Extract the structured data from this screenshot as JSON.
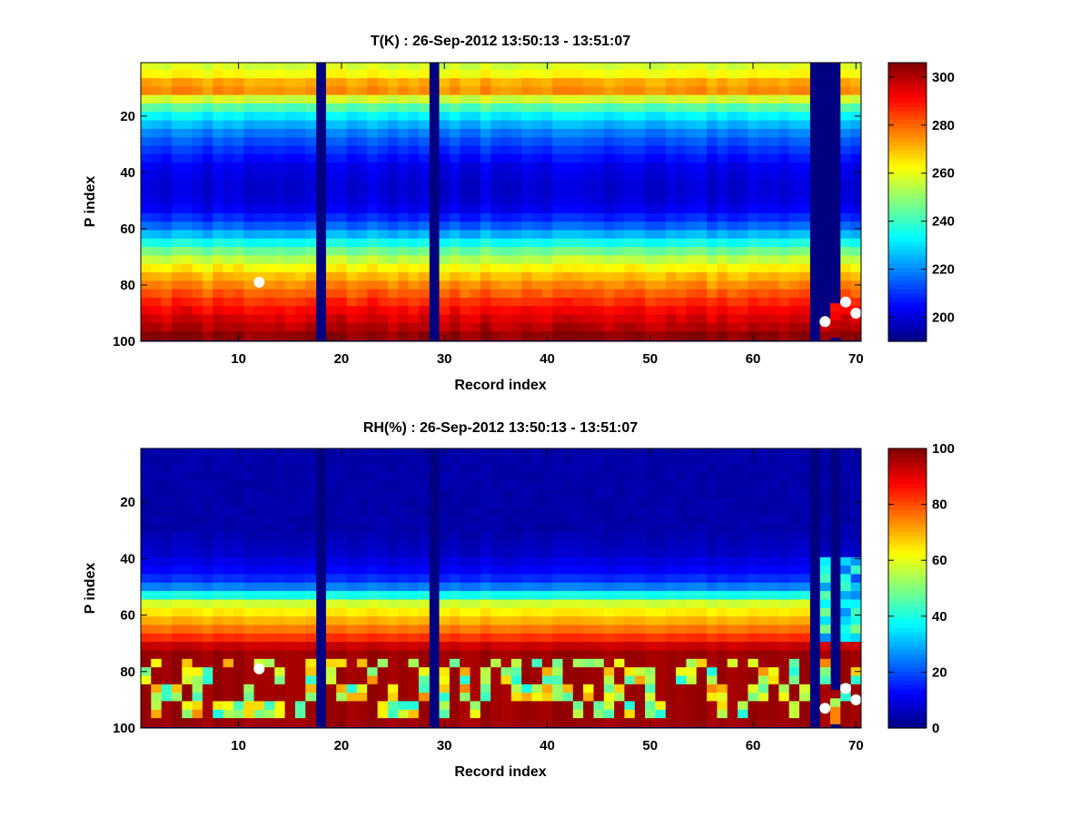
{
  "figure": {
    "background": "#ffffff",
    "colormap": "jet"
  },
  "chart_data": [
    {
      "type": "heatmap",
      "id": "temperature",
      "title": "T(K) : 26-Sep-2012 13:50:13 - 13:51:07",
      "xlabel": "Record index",
      "ylabel": "P index",
      "xlim": [
        0.5,
        70.5
      ],
      "ylim": [
        1,
        100
      ],
      "y_reversed": true,
      "xticks": [
        10,
        20,
        30,
        40,
        50,
        60,
        70
      ],
      "yticks": [
        20,
        40,
        60,
        80,
        100
      ],
      "colorbar": {
        "clim": [
          190,
          306
        ],
        "ticks": [
          200,
          220,
          240,
          260,
          280,
          300
        ]
      },
      "valid_rows": [
        1,
        98
      ],
      "missing_records": [
        18,
        29,
        66
      ],
      "partial_records": [
        {
          "record": 67,
          "valid_from_row": 94
        },
        {
          "record": 68,
          "valid_from_row": 87
        }
      ],
      "profile": [
        {
          "p": 1,
          "value": 256
        },
        {
          "p": 5,
          "value": 262
        },
        {
          "p": 8,
          "value": 272
        },
        {
          "p": 10,
          "value": 280
        },
        {
          "p": 12,
          "value": 270
        },
        {
          "p": 15,
          "value": 250
        },
        {
          "p": 20,
          "value": 232
        },
        {
          "p": 25,
          "value": 220
        },
        {
          "p": 30,
          "value": 212
        },
        {
          "p": 38,
          "value": 202
        },
        {
          "p": 45,
          "value": 199
        },
        {
          "p": 52,
          "value": 201
        },
        {
          "p": 58,
          "value": 212
        },
        {
          "p": 63,
          "value": 228
        },
        {
          "p": 68,
          "value": 246
        },
        {
          "p": 72,
          "value": 258
        },
        {
          "p": 76,
          "value": 268
        },
        {
          "p": 80,
          "value": 276
        },
        {
          "p": 84,
          "value": 283
        },
        {
          "p": 88,
          "value": 290
        },
        {
          "p": 92,
          "value": 296
        },
        {
          "p": 96,
          "value": 301
        },
        {
          "p": 98,
          "value": 304
        }
      ],
      "markers": [
        {
          "x": 12,
          "y": 79
        },
        {
          "x": 67,
          "y": 93
        },
        {
          "x": 69,
          "y": 86
        },
        {
          "x": 70,
          "y": 90
        }
      ]
    },
    {
      "type": "heatmap",
      "id": "humidity",
      "title": "RH(%) : 26-Sep-2012 13:50:13 - 13:51:07",
      "xlabel": "Record index",
      "ylabel": "P index",
      "xlim": [
        0.5,
        70.5
      ],
      "ylim": [
        1,
        100
      ],
      "y_reversed": true,
      "xticks": [
        10,
        20,
        30,
        40,
        50,
        60,
        70
      ],
      "yticks": [
        20,
        40,
        60,
        80,
        100
      ],
      "colorbar": {
        "clim": [
          0,
          100
        ],
        "ticks": [
          0,
          20,
          40,
          60,
          80,
          100
        ]
      },
      "valid_rows": [
        1,
        98
      ],
      "missing_records": [
        18,
        29,
        66
      ],
      "partial_records": [
        {
          "record": 68,
          "valid_from_row": 87
        }
      ],
      "profile": [
        {
          "p": 1,
          "value": 3
        },
        {
          "p": 30,
          "value": 4
        },
        {
          "p": 38,
          "value": 7
        },
        {
          "p": 44,
          "value": 12
        },
        {
          "p": 48,
          "value": 18
        },
        {
          "p": 51,
          "value": 28
        },
        {
          "p": 54,
          "value": 45
        },
        {
          "p": 56,
          "value": 58
        },
        {
          "p": 60,
          "value": 66
        },
        {
          "p": 64,
          "value": 74
        },
        {
          "p": 67,
          "value": 80
        },
        {
          "p": 70,
          "value": 88
        },
        {
          "p": 72,
          "value": 97
        },
        {
          "p": 98,
          "value": 97
        }
      ],
      "markers": [
        {
          "x": 12,
          "y": 79
        },
        {
          "x": 67,
          "y": 93
        },
        {
          "x": 69,
          "y": 86
        },
        {
          "x": 70,
          "y": 90
        }
      ]
    }
  ]
}
